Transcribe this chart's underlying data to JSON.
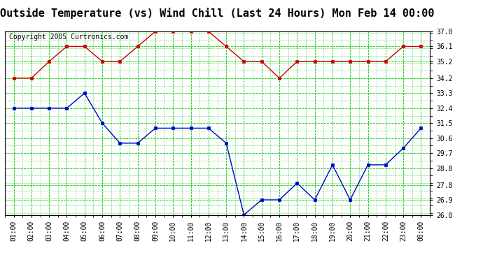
{
  "title": "Outside Temperature (vs) Wind Chill (Last 24 Hours) Mon Feb 14 00:00",
  "copyright": "Copyright 2005 Curtronics.com",
  "x_labels": [
    "01:00",
    "02:00",
    "03:00",
    "04:00",
    "05:00",
    "06:00",
    "07:00",
    "08:00",
    "09:00",
    "10:00",
    "11:00",
    "12:00",
    "13:00",
    "14:00",
    "15:00",
    "16:00",
    "17:00",
    "18:00",
    "19:00",
    "20:00",
    "21:00",
    "22:00",
    "23:00",
    "00:00"
  ],
  "red_data": [
    34.2,
    34.2,
    35.2,
    36.1,
    36.1,
    35.2,
    35.2,
    36.1,
    37.0,
    37.0,
    37.0,
    37.0,
    36.1,
    35.2,
    35.2,
    34.2,
    35.2,
    35.2,
    35.2,
    35.2,
    35.2,
    35.2,
    36.1,
    36.1
  ],
  "blue_data": [
    32.4,
    32.4,
    32.4,
    32.4,
    33.3,
    31.5,
    30.3,
    30.3,
    31.2,
    31.2,
    31.2,
    31.2,
    30.3,
    26.0,
    26.9,
    26.9,
    27.9,
    26.9,
    29.0,
    26.9,
    29.0,
    29.0,
    30.0,
    31.2
  ],
  "ylim_min": 26.0,
  "ylim_max": 37.0,
  "yticks": [
    26.0,
    26.9,
    27.8,
    28.8,
    29.7,
    30.6,
    31.5,
    32.4,
    33.3,
    34.2,
    35.2,
    36.1,
    37.0
  ],
  "red_color": "#cc0000",
  "blue_color": "#0000cc",
  "bg_color": "#ffffff",
  "grid_color": "#00cc00",
  "title_fontsize": 11,
  "tick_fontsize": 7,
  "copyright_fontsize": 7
}
